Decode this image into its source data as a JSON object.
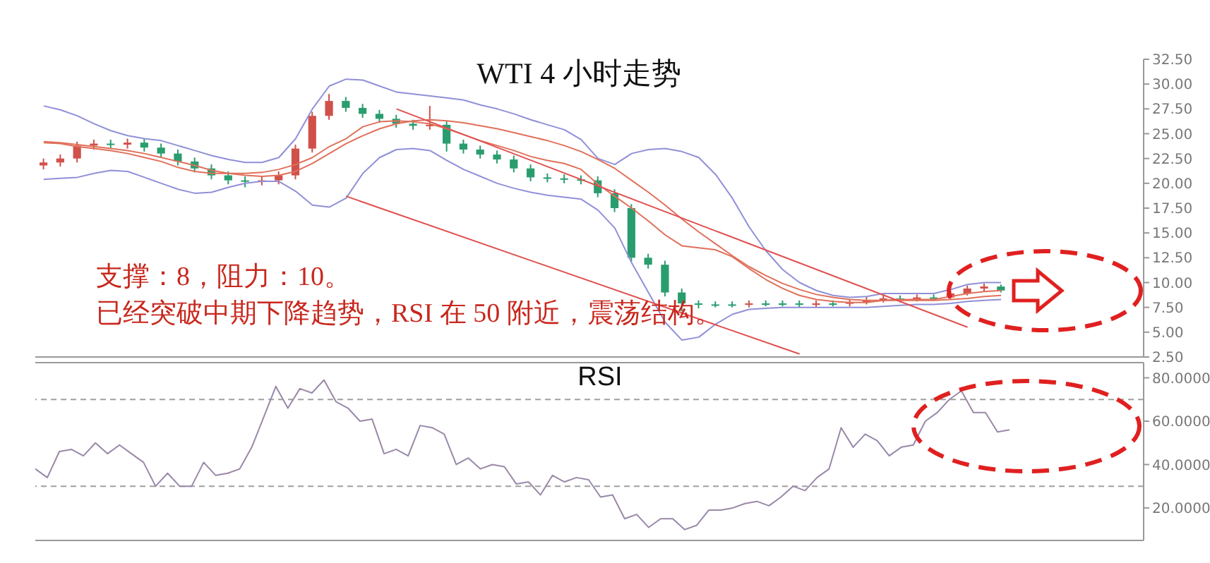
{
  "chart_data": [
    {
      "type": "candlestick",
      "title": "WTI 4 小时走势",
      "categories": [
        null,
        null,
        null,
        null,
        null,
        null,
        null,
        null,
        null,
        null,
        null,
        null,
        null,
        null,
        null,
        null,
        null,
        null,
        null,
        null,
        null,
        null,
        null,
        null,
        null,
        null,
        null,
        null,
        null,
        null,
        null,
        null,
        null,
        null,
        null,
        null,
        null,
        null,
        null,
        null,
        null,
        null,
        null,
        null,
        null,
        null,
        null,
        null,
        null,
        null,
        null,
        null,
        null,
        null,
        null,
        null,
        null,
        null
      ],
      "ohlc": [
        [
          21.8,
          22.5,
          21.4,
          22.1
        ],
        [
          22.1,
          22.9,
          21.7,
          22.5
        ],
        [
          22.5,
          24.2,
          22.1,
          23.8
        ],
        [
          23.8,
          24.4,
          23.4,
          24.0
        ],
        [
          24.0,
          24.4,
          23.5,
          23.9
        ],
        [
          23.9,
          24.5,
          23.5,
          24.1
        ],
        [
          24.1,
          24.5,
          23.2,
          23.6
        ],
        [
          23.6,
          24.0,
          22.6,
          23.0
        ],
        [
          23.0,
          23.4,
          21.8,
          22.2
        ],
        [
          22.2,
          22.6,
          21.1,
          21.5
        ],
        [
          21.5,
          21.9,
          20.4,
          20.8
        ],
        [
          20.8,
          21.2,
          19.9,
          20.3
        ],
        [
          20.3,
          20.7,
          19.6,
          20.2
        ],
        [
          20.2,
          20.7,
          19.8,
          20.3
        ],
        [
          20.3,
          21.2,
          19.9,
          20.8
        ],
        [
          20.8,
          23.9,
          20.4,
          23.5
        ],
        [
          23.5,
          27.2,
          23.1,
          26.8
        ],
        [
          26.8,
          29.0,
          26.4,
          28.3
        ],
        [
          28.3,
          28.7,
          27.2,
          27.6
        ],
        [
          27.6,
          28.0,
          26.6,
          27.0
        ],
        [
          27.0,
          27.4,
          26.1,
          26.5
        ],
        [
          26.5,
          26.9,
          25.6,
          26.0
        ],
        [
          26.0,
          26.4,
          25.4,
          25.8
        ],
        [
          25.8,
          27.8,
          25.4,
          25.9
        ],
        [
          25.9,
          26.3,
          23.2,
          24.0
        ],
        [
          24.0,
          24.4,
          23.0,
          23.4
        ],
        [
          23.4,
          23.8,
          22.5,
          22.9
        ],
        [
          22.9,
          23.3,
          22.0,
          22.4
        ],
        [
          22.4,
          22.8,
          21.1,
          21.5
        ],
        [
          21.5,
          21.9,
          20.2,
          20.6
        ],
        [
          20.6,
          21.0,
          20.1,
          20.5
        ],
        [
          20.5,
          20.9,
          20.0,
          20.4
        ],
        [
          20.4,
          20.8,
          19.9,
          20.3
        ],
        [
          20.3,
          20.7,
          18.6,
          19.0
        ],
        [
          19.0,
          19.4,
          17.1,
          17.5
        ],
        [
          17.5,
          17.9,
          12.1,
          12.5
        ],
        [
          12.5,
          12.9,
          11.4,
          11.8
        ],
        [
          11.8,
          12.2,
          8.6,
          9.0
        ],
        [
          9.0,
          9.4,
          7.1,
          7.9
        ],
        [
          7.9,
          8.2,
          7.4,
          7.8
        ],
        [
          7.8,
          8.1,
          7.5,
          7.8
        ],
        [
          7.8,
          8.1,
          7.5,
          7.8
        ],
        [
          7.8,
          8.2,
          7.5,
          7.9
        ],
        [
          7.9,
          8.2,
          7.6,
          7.9
        ],
        [
          7.9,
          8.2,
          7.6,
          7.9
        ],
        [
          7.9,
          8.2,
          7.5,
          7.8
        ],
        [
          7.8,
          8.2,
          7.5,
          7.9
        ],
        [
          7.9,
          8.2,
          7.6,
          7.9
        ],
        [
          7.9,
          8.3,
          7.6,
          8.0
        ],
        [
          8.0,
          8.6,
          7.8,
          8.2
        ],
        [
          8.2,
          8.8,
          8.0,
          8.4
        ],
        [
          8.4,
          8.7,
          8.0,
          8.3
        ],
        [
          8.3,
          8.8,
          8.1,
          8.5
        ],
        [
          8.5,
          8.8,
          8.2,
          8.5
        ],
        [
          8.5,
          9.2,
          8.3,
          8.9
        ],
        [
          8.9,
          9.7,
          8.7,
          9.4
        ],
        [
          9.4,
          9.9,
          9.1,
          9.6
        ],
        [
          9.6,
          9.8,
          9.0,
          9.2
        ]
      ],
      "colors": [
        "#d0504a",
        "#d0504a",
        "#d0504a",
        "#d0504a",
        "#2a9d6f",
        "#d0504a",
        "#2a9d6f",
        "#2a9d6f",
        "#2a9d6f",
        "#2a9d6f",
        "#2a9d6f",
        "#2a9d6f",
        "#2a9d6f",
        "#d0504a",
        "#d0504a",
        "#d0504a",
        "#d0504a",
        "#d0504a",
        "#2a9d6f",
        "#2a9d6f",
        "#2a9d6f",
        "#2a9d6f",
        "#2a9d6f",
        "#d0504a",
        "#2a9d6f",
        "#2a9d6f",
        "#2a9d6f",
        "#2a9d6f",
        "#2a9d6f",
        "#2a9d6f",
        "#2a9d6f",
        "#2a9d6f",
        "#2a9d6f",
        "#2a9d6f",
        "#2a9d6f",
        "#2a9d6f",
        "#2a9d6f",
        "#2a9d6f",
        "#2a9d6f",
        "#2a9d6f",
        "#2a9d6f",
        "#2a9d6f",
        "#d0504a",
        "#2a9d6f",
        "#2a9d6f",
        "#2a9d6f",
        "#d0504a",
        "#2a9d6f",
        "#d0504a",
        "#d0504a",
        "#d0504a",
        "#2a9d6f",
        "#d0504a",
        "#2a9d6f",
        "#d0504a",
        "#d0504a",
        "#d0504a",
        "#2a9d6f"
      ],
      "series": [
        {
          "type": "line",
          "color": "#9090d8",
          "values": [
            27.8,
            27.4,
            26.8,
            26.0,
            25.3,
            24.8,
            24.5,
            24.3,
            23.8,
            23.3,
            22.8,
            22.4,
            22.1,
            22.1,
            22.6,
            24.5,
            27.5,
            29.8,
            30.5,
            30.4,
            29.8,
            29.2,
            29.0,
            28.8,
            28.6,
            28.4,
            27.9,
            27.5,
            27.0,
            26.4,
            25.9,
            25.4,
            24.4,
            22.5,
            21.9,
            23.0,
            23.4,
            23.5,
            23.2,
            22.6,
            20.9,
            18.5,
            15.6,
            13.2,
            11.3,
            10.0,
            9.2,
            8.7,
            8.5,
            8.6,
            8.9,
            8.9,
            8.9,
            8.9,
            9.3,
            9.8,
            10.0,
            10.0
          ]
        },
        {
          "type": "line",
          "color": "#9090d8",
          "values": [
            20.4,
            20.5,
            20.6,
            21.0,
            21.3,
            21.2,
            20.6,
            20.0,
            19.4,
            19.0,
            19.1,
            19.6,
            20.0,
            20.2,
            20.2,
            19.2,
            17.8,
            17.6,
            18.5,
            21.0,
            22.6,
            23.4,
            23.5,
            23.3,
            22.3,
            21.4,
            20.7,
            20.0,
            19.5,
            19.1,
            18.8,
            18.6,
            18.4,
            17.3,
            15.5,
            12.0,
            9.0,
            6.0,
            4.2,
            4.5,
            5.8,
            6.8,
            7.3,
            7.4,
            7.5,
            7.5,
            7.5,
            7.5,
            7.5,
            7.5,
            7.6,
            7.7,
            7.8,
            7.8,
            7.9,
            8.1,
            8.2,
            8.3
          ]
        },
        {
          "type": "line",
          "color": "#e0705a",
          "values": [
            24.1,
            24.0,
            23.7,
            23.5,
            23.3,
            23.0,
            22.6,
            22.2,
            21.6,
            21.2,
            21.0,
            21.0,
            21.0,
            21.1,
            21.4,
            21.9,
            22.6,
            23.7,
            24.5,
            25.7,
            26.2,
            26.3,
            26.2,
            26.0,
            25.5,
            24.9,
            24.3,
            23.8,
            23.3,
            22.7,
            22.3,
            22.0,
            21.4,
            19.9,
            18.7,
            17.5,
            16.2,
            14.8,
            13.7,
            13.5,
            13.3,
            12.6,
            11.4,
            10.3,
            9.4,
            8.7,
            8.3,
            8.1,
            8.0,
            8.0,
            8.2,
            8.3,
            8.3,
            8.3,
            8.6,
            8.9,
            9.1,
            9.2
          ]
        },
        {
          "type": "line",
          "color": "#e0705a",
          "values": [
            24.2,
            24.1,
            23.9,
            23.7,
            23.5,
            23.3,
            23.0,
            22.6,
            22.2,
            21.8,
            21.3,
            21.0,
            20.8,
            20.7,
            20.8,
            21.2,
            22.0,
            23.0,
            24.0,
            24.8,
            25.5,
            26.0,
            26.3,
            26.4,
            26.3,
            26.1,
            25.8,
            25.5,
            25.1,
            24.7,
            24.3,
            23.8,
            23.2,
            22.4,
            21.5,
            20.3,
            19.1,
            17.8,
            16.4,
            15.1,
            13.9,
            12.7,
            11.6,
            10.7,
            9.9,
            9.3,
            8.8,
            8.5,
            8.3,
            8.2,
            8.2,
            8.2,
            8.2,
            8.2,
            8.3,
            8.4,
            8.6,
            8.7
          ]
        },
        {
          "type": "line",
          "color": "#e05050",
          "values": [
            null,
            null,
            null,
            null,
            null,
            null,
            null,
            null,
            null,
            null,
            null,
            null,
            null,
            null,
            null,
            null,
            null,
            null,
            18.7,
            null,
            null,
            null,
            null,
            null,
            null,
            null,
            null,
            null,
            null,
            null,
            null,
            null,
            null,
            null,
            null,
            null,
            null,
            null,
            null,
            null,
            null,
            null,
            null,
            null,
            null,
            2.8,
            null,
            null,
            null,
            null,
            null,
            null,
            null,
            null,
            null,
            null,
            null,
            null
          ]
        },
        {
          "type": "line",
          "color": "#e05050",
          "values": [
            null,
            null,
            null,
            null,
            null,
            null,
            null,
            null,
            null,
            null,
            null,
            null,
            null,
            null,
            null,
            null,
            null,
            null,
            null,
            null,
            null,
            27.5,
            null,
            null,
            null,
            null,
            null,
            null,
            null,
            null,
            null,
            null,
            null,
            null,
            null,
            null,
            null,
            null,
            null,
            null,
            null,
            null,
            null,
            null,
            null,
            null,
            null,
            null,
            null,
            null,
            null,
            null,
            null,
            null,
            null,
            5.5,
            null,
            null
          ]
        }
      ],
      "ylim": [
        2.5,
        32.5
      ],
      "yticks": [
        {
          "value": 2.5,
          "label": "2.50"
        },
        {
          "value": 5,
          "label": "5.00"
        },
        {
          "value": 7.5,
          "label": "7.50"
        },
        {
          "value": 10,
          "label": "10.00"
        },
        {
          "value": 12.5,
          "label": "12.50"
        },
        {
          "value": 15,
          "label": "15.00"
        },
        {
          "value": 17.5,
          "label": "17.50"
        },
        {
          "value": 20,
          "label": "20.00"
        },
        {
          "value": 22.5,
          "label": "22.50"
        },
        {
          "value": 25,
          "label": "25.00"
        },
        {
          "value": 27.5,
          "label": "27.50"
        },
        {
          "value": 30,
          "label": "30.00"
        },
        {
          "value": 32.5,
          "label": "32.50"
        }
      ],
      "annotations": [
        "支撑：8，阻力：10。",
        "已经突破中期下降趋势，RSI 在 50 附近，震荡结构。"
      ]
    },
    {
      "type": "line",
      "title": "RSI",
      "categories": [
        null,
        null,
        null,
        null,
        null,
        null,
        null,
        null,
        null,
        null,
        null,
        null,
        null,
        null,
        null,
        null,
        null,
        null,
        null,
        null,
        null,
        null,
        null,
        null,
        null,
        null,
        null,
        null,
        null,
        null,
        null,
        null,
        null,
        null,
        null,
        null,
        null,
        null,
        null,
        null,
        null,
        null,
        null,
        null,
        null,
        null,
        null,
        null,
        null,
        null,
        null,
        null,
        null,
        null,
        null,
        null,
        null,
        null,
        null,
        null,
        null,
        null,
        null,
        null,
        null,
        null,
        null,
        null,
        null,
        null,
        null,
        null,
        null,
        null,
        null,
        null,
        null,
        null,
        null,
        null,
        null,
        null
      ],
      "series": [
        {
          "color": "#9a88a8",
          "values": [
            38,
            34,
            46,
            47,
            44,
            50,
            45,
            49,
            45,
            41,
            30,
            36,
            30,
            30,
            41,
            35,
            36,
            38,
            48,
            62,
            76,
            66,
            75,
            73,
            79,
            69,
            66,
            60,
            61,
            45,
            47,
            44,
            58,
            57,
            54,
            40,
            43,
            38,
            40,
            39,
            31,
            32,
            26,
            35,
            32,
            34,
            33,
            25,
            26,
            15,
            17,
            11,
            15,
            15,
            10,
            12,
            19,
            19,
            20,
            22,
            23,
            21,
            25,
            30,
            28,
            34,
            38,
            57,
            48,
            54,
            51,
            44,
            48,
            49,
            60,
            64,
            70,
            74,
            64,
            64,
            55,
            56
          ]
        }
      ],
      "ylim": [
        5,
        87
      ],
      "yticks": [
        {
          "value": 20,
          "label": "20.0000"
        },
        {
          "value": 40,
          "label": "40.0000"
        },
        {
          "value": 60,
          "label": "60.0000"
        },
        {
          "value": 80,
          "label": "80.0000"
        }
      ],
      "ref_lines": [
        {
          "axis": "y",
          "value": 70,
          "color": "#a0a0a0",
          "line_style": "dashed"
        },
        {
          "axis": "y",
          "value": 30,
          "color": "#a0a0a0",
          "line_style": "dashed"
        }
      ]
    }
  ]
}
